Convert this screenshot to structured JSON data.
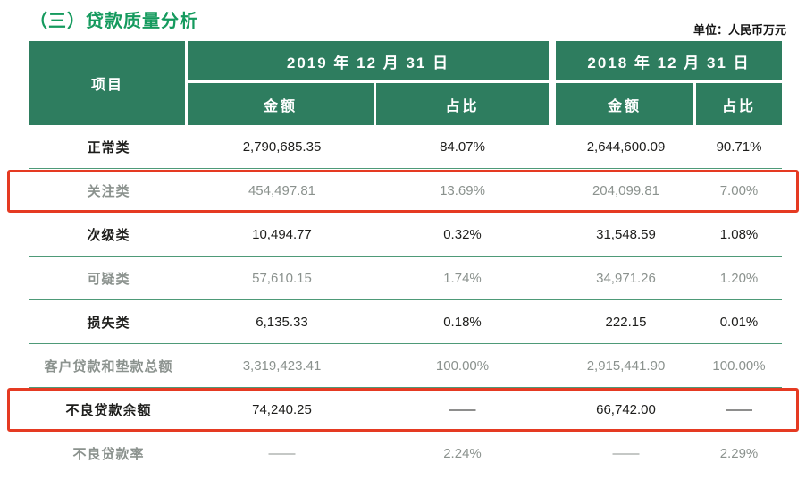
{
  "page": {
    "title": "（三）贷款质量分析",
    "unit_label": "单位：人民币万元"
  },
  "colors": {
    "title_green": "#159a5e",
    "header_green": "#2e7d5f",
    "row_line_green": "#4e9a78",
    "highlight_red": "#e53a22",
    "faded_text": "#8b928e",
    "text": "#1d1d1b"
  },
  "table": {
    "header": {
      "item": "项目",
      "col_2019": "2019 年 12 月 31 日",
      "col_2018": "2018 年 12 月 31 日",
      "amount": "金额",
      "ratio": "占比"
    },
    "rows": [
      {
        "item": "正常类",
        "a2019": "2,790,685.35",
        "r2019": "84.07%",
        "a2018": "2,644,600.09",
        "r2018": "90.71%",
        "highlighted": false,
        "faded": false
      },
      {
        "item": "关注类",
        "a2019": "454,497.81",
        "r2019": "13.69%",
        "a2018": "204,099.81",
        "r2018": "7.00%",
        "highlighted": true,
        "faded": true
      },
      {
        "item": "次级类",
        "a2019": "10,494.77",
        "r2019": "0.32%",
        "a2018": "31,548.59",
        "r2018": "1.08%",
        "highlighted": false,
        "faded": false
      },
      {
        "item": "可疑类",
        "a2019": "57,610.15",
        "r2019": "1.74%",
        "a2018": "34,971.26",
        "r2018": "1.20%",
        "highlighted": false,
        "faded": true
      },
      {
        "item": "损失类",
        "a2019": "6,135.33",
        "r2019": "0.18%",
        "a2018": "222.15",
        "r2018": "0.01%",
        "highlighted": false,
        "faded": false
      },
      {
        "item": "客户贷款和垫款总额",
        "a2019": "3,319,423.41",
        "r2019": "100.00%",
        "a2018": "2,915,441.90",
        "r2018": "100.00%",
        "highlighted": false,
        "faded": true
      },
      {
        "item": "不良贷款余额",
        "a2019": "74,240.25",
        "r2019": "——",
        "a2018": "66,742.00",
        "r2018": "——",
        "highlighted": true,
        "faded": false
      },
      {
        "item": "不良贷款率",
        "a2019": "——",
        "r2019": "2.24%",
        "a2018": "——",
        "r2018": "2.29%",
        "highlighted": false,
        "faded": true
      }
    ]
  }
}
